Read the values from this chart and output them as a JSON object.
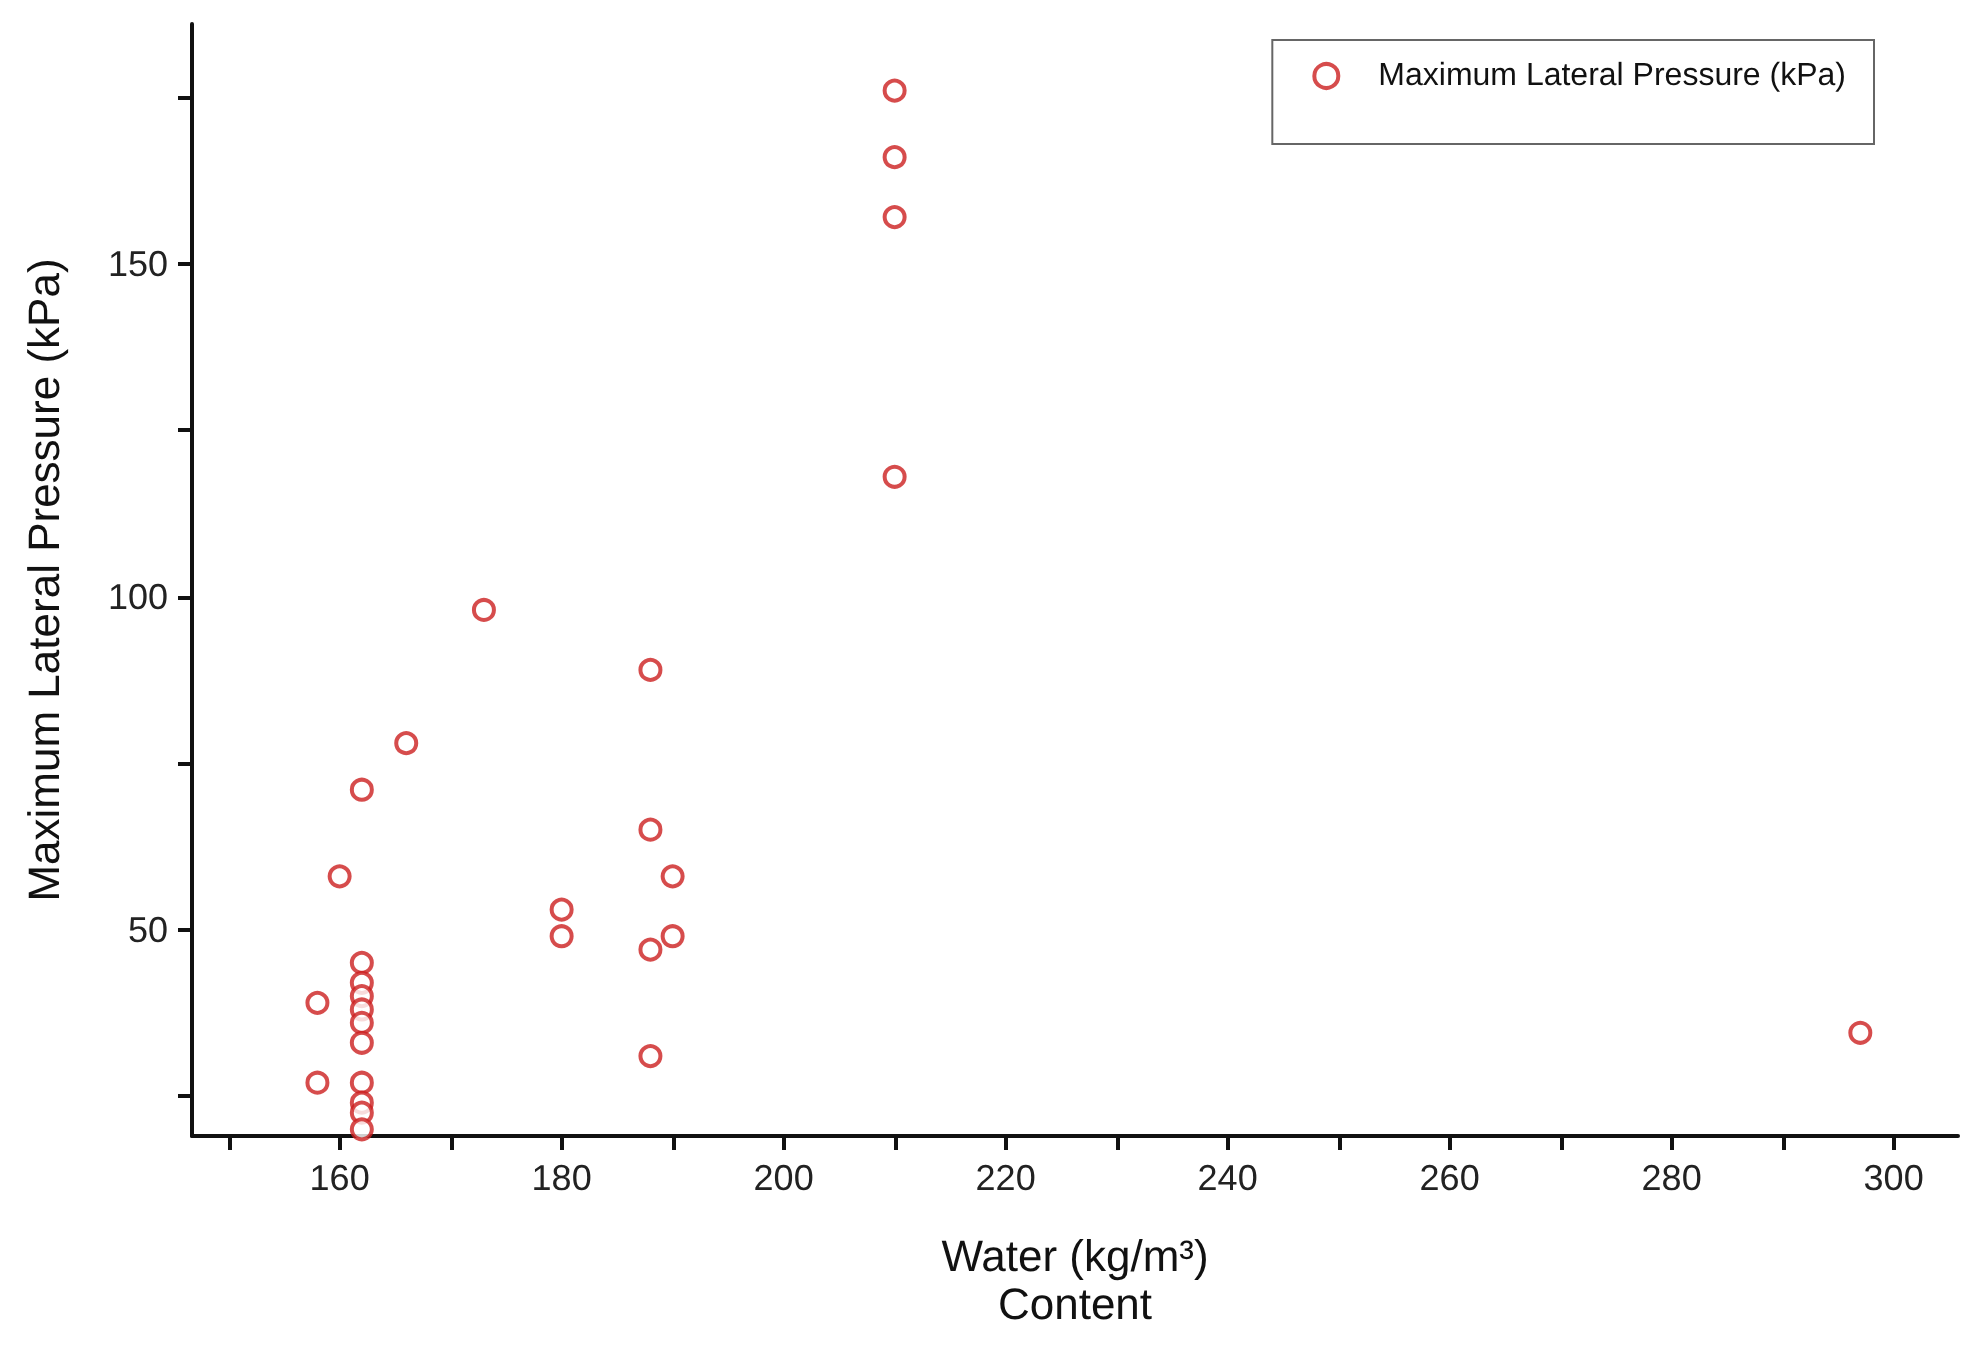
{
  "chart_data": {
    "type": "scatter",
    "xlabel": "Water (kg/m³)\nContent",
    "ylabel": "Maximum Lateral Pressure (kPa)",
    "series": [
      {
        "name": "Maximum Lateral Pressure (kPa)",
        "color": "#cc1f1f",
        "x": [
          158,
          158,
          160,
          162,
          162,
          162,
          162,
          162,
          162,
          162,
          162,
          162,
          162,
          162,
          166,
          173,
          180,
          180,
          188,
          188,
          188,
          188,
          190,
          190,
          210,
          210,
          210,
          210,
          297
        ],
        "values": [
          39,
          27,
          58,
          71,
          45,
          42,
          40,
          38,
          36,
          33,
          27,
          24,
          22.5,
          20,
          78,
          98,
          53,
          49,
          89,
          65,
          47,
          31,
          58,
          49,
          176,
          166,
          157,
          118,
          34.5
        ]
      }
    ],
    "xlim": [
      146.7,
      305.8
    ],
    "ylim": [
      19,
      186
    ],
    "xticks": [
      {
        "value": 150,
        "label": null
      },
      160,
      {
        "value": 170,
        "label": null
      },
      180,
      {
        "value": 190,
        "label": null
      },
      200,
      {
        "value": 210,
        "label": null
      },
      220,
      {
        "value": 230,
        "label": null
      },
      240,
      {
        "value": 250,
        "label": null
      },
      260,
      {
        "value": 270,
        "label": null
      },
      280,
      {
        "value": 290,
        "label": null
      },
      300
    ],
    "yticks": [
      {
        "value": 25,
        "label": null
      },
      50,
      {
        "value": 75,
        "label": null
      },
      100,
      {
        "value": 125,
        "label": null
      },
      150,
      {
        "value": 175,
        "label": null
      }
    ],
    "grid": false,
    "legend": "top right",
    "marker": "circle"
  }
}
